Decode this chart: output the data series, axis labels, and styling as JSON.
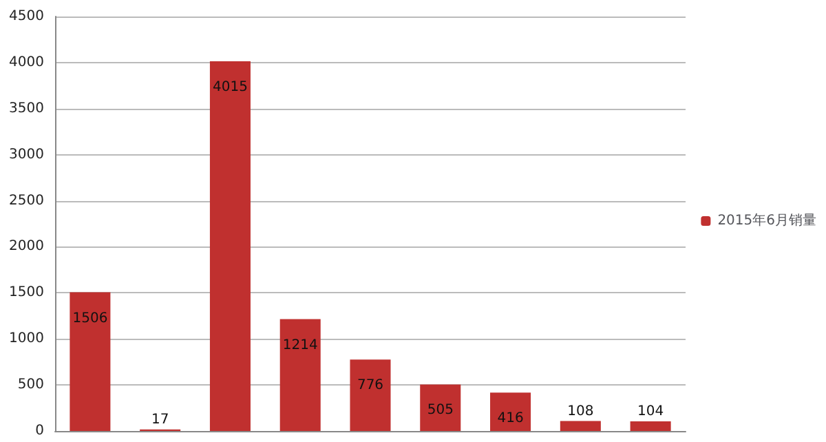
{
  "chart_data": {
    "type": "bar",
    "categories": [
      null,
      null,
      null,
      null,
      null,
      null,
      null,
      null,
      null
    ],
    "series": [
      {
        "name": "2015年6月销量",
        "color": "#c0302f",
        "values": [
          1506,
          17,
          4015,
          1214,
          776,
          505,
          416,
          108,
          104
        ]
      }
    ],
    "ylim": [
      0,
      4500
    ],
    "yticks": [
      0,
      500,
      1000,
      1500,
      2000,
      2500,
      3000,
      3500,
      4000,
      4500
    ],
    "grid": "y",
    "legend": "right",
    "data_labels": true
  }
}
